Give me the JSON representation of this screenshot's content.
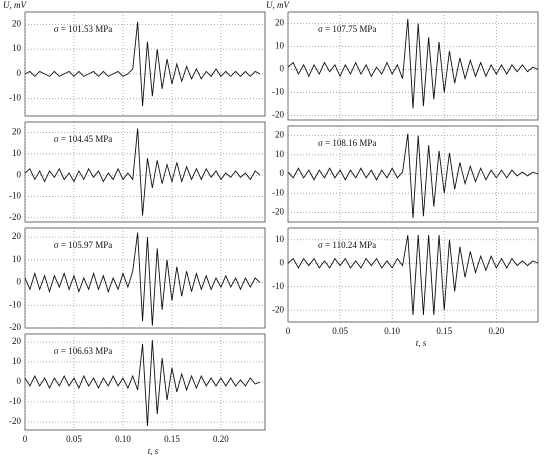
{
  "chart_data": [
    {
      "type": "line",
      "ylabel": "U, mV",
      "annotation": "σ = 101.53 MPa",
      "color": "#111111",
      "grid": true,
      "x": [
        0,
        0.005,
        0.01,
        0.015,
        0.02,
        0.025,
        0.03,
        0.035,
        0.04,
        0.045,
        0.05,
        0.055,
        0.06,
        0.065,
        0.07,
        0.075,
        0.08,
        0.085,
        0.09,
        0.095,
        0.1,
        0.105,
        0.11,
        0.115,
        0.12,
        0.125,
        0.13,
        0.135,
        0.14,
        0.145,
        0.15,
        0.155,
        0.16,
        0.165,
        0.17,
        0.175,
        0.18,
        0.185,
        0.19,
        0.195,
        0.2,
        0.205,
        0.21,
        0.215,
        0.22,
        0.225,
        0.23,
        0.235,
        0.24
      ],
      "values": [
        0,
        1,
        -1,
        1,
        0,
        -1,
        1,
        -1,
        0,
        1,
        -1,
        1,
        -1,
        0,
        1,
        -1,
        1,
        -1,
        0,
        1,
        -1,
        0,
        2,
        21,
        -13,
        13,
        -9,
        10,
        -6,
        6,
        -4,
        4,
        -3,
        3,
        -2,
        2,
        -2,
        1,
        -1,
        2,
        -1,
        1,
        -1,
        1,
        -1,
        1,
        -1,
        1,
        0
      ],
      "xlim": [
        0,
        0.245
      ],
      "ylim": [
        -17,
        25
      ],
      "xticks": [
        0,
        0.05,
        0.1,
        0.15,
        0.2
      ],
      "yticks": [
        -10,
        0,
        10,
        20
      ]
    },
    {
      "type": "line",
      "annotation": "σ = 104.45 MPa",
      "color": "#111111",
      "grid": true,
      "x": [
        0,
        0.005,
        0.01,
        0.015,
        0.02,
        0.025,
        0.03,
        0.035,
        0.04,
        0.045,
        0.05,
        0.055,
        0.06,
        0.065,
        0.07,
        0.075,
        0.08,
        0.085,
        0.09,
        0.095,
        0.1,
        0.105,
        0.11,
        0.115,
        0.12,
        0.125,
        0.13,
        0.135,
        0.14,
        0.145,
        0.15,
        0.155,
        0.16,
        0.165,
        0.17,
        0.175,
        0.18,
        0.185,
        0.19,
        0.195,
        0.2,
        0.205,
        0.21,
        0.215,
        0.22,
        0.225,
        0.23,
        0.235,
        0.24
      ],
      "values": [
        1,
        3,
        -2,
        2,
        -3,
        2,
        -1,
        3,
        -2,
        1,
        -3,
        2,
        -2,
        3,
        -1,
        2,
        -3,
        1,
        -2,
        3,
        -2,
        1,
        -2,
        22,
        -19,
        8,
        -6,
        7,
        -4,
        5,
        -3,
        6,
        -3,
        4,
        -2,
        3,
        -2,
        3,
        -1,
        2,
        -2,
        1,
        -1,
        2,
        -1,
        1,
        -2,
        2,
        0
      ],
      "xlim": [
        0,
        0.245
      ],
      "ylim": [
        -22,
        25
      ],
      "xticks": [
        0,
        0.05,
        0.1,
        0.15,
        0.2
      ],
      "yticks": [
        -20,
        -10,
        0,
        10,
        20
      ]
    },
    {
      "type": "line",
      "annotation": "σ = 105.97 MPa",
      "color": "#111111",
      "grid": true,
      "x": [
        0,
        0.005,
        0.01,
        0.015,
        0.02,
        0.025,
        0.03,
        0.035,
        0.04,
        0.045,
        0.05,
        0.055,
        0.06,
        0.065,
        0.07,
        0.075,
        0.08,
        0.085,
        0.09,
        0.095,
        0.1,
        0.105,
        0.11,
        0.115,
        0.12,
        0.125,
        0.13,
        0.135,
        0.14,
        0.145,
        0.15,
        0.155,
        0.16,
        0.165,
        0.17,
        0.175,
        0.18,
        0.185,
        0.19,
        0.195,
        0.2,
        0.205,
        0.21,
        0.215,
        0.22,
        0.225,
        0.23,
        0.235,
        0.24
      ],
      "values": [
        2,
        -3,
        4,
        -3,
        3,
        -4,
        3,
        -2,
        4,
        -3,
        3,
        -4,
        2,
        -3,
        4,
        -3,
        3,
        -4,
        2,
        -3,
        4,
        -2,
        5,
        22,
        -17,
        20,
        -19,
        15,
        -12,
        10,
        -8,
        7,
        -6,
        5,
        -4,
        4,
        -3,
        3,
        -3,
        2,
        -2,
        3,
        -2,
        2,
        -3,
        2,
        -2,
        2,
        0
      ],
      "xlim": [
        0,
        0.245
      ],
      "ylim": [
        -20,
        24
      ],
      "xticks": [
        0,
        0.05,
        0.1,
        0.15,
        0.2
      ],
      "yticks": [
        -20,
        -10,
        0,
        10,
        20
      ]
    },
    {
      "type": "line",
      "annotation": "σ = 106.63 MPa",
      "xlabel": "t, s",
      "color": "#111111",
      "grid": true,
      "x": [
        0,
        0.005,
        0.01,
        0.015,
        0.02,
        0.025,
        0.03,
        0.035,
        0.04,
        0.045,
        0.05,
        0.055,
        0.06,
        0.065,
        0.07,
        0.075,
        0.08,
        0.085,
        0.09,
        0.095,
        0.1,
        0.105,
        0.11,
        0.115,
        0.12,
        0.125,
        0.13,
        0.135,
        0.14,
        0.145,
        0.15,
        0.155,
        0.16,
        0.165,
        0.17,
        0.175,
        0.18,
        0.185,
        0.19,
        0.195,
        0.2,
        0.205,
        0.21,
        0.215,
        0.22,
        0.225,
        0.23,
        0.235,
        0.24
      ],
      "values": [
        2,
        -2,
        3,
        -2,
        2,
        -3,
        2,
        -2,
        3,
        -2,
        2,
        -3,
        3,
        -2,
        2,
        -3,
        2,
        -2,
        3,
        -2,
        2,
        -3,
        3,
        -4,
        19,
        -22,
        21,
        -16,
        12,
        -9,
        7,
        -5,
        4,
        -4,
        3,
        -3,
        3,
        -2,
        2,
        -2,
        2,
        -2,
        2,
        -2,
        1,
        -2,
        2,
        -1,
        0
      ],
      "xlim": [
        0,
        0.245
      ],
      "ylim": [
        -24,
        24
      ],
      "xticks": [
        0,
        0.05,
        {
          "value": 0.1,
          "label": "0.10"
        },
        0.15,
        {
          "value": 0.2,
          "label": "0.20"
        }
      ],
      "yticks": [
        -20,
        -10,
        0,
        10,
        20
      ]
    },
    {
      "type": "line",
      "ylabel": "U, mV",
      "annotation": "σ = 107.75 MPa",
      "color": "#111111",
      "grid": true,
      "x": [
        0,
        0.005,
        0.01,
        0.015,
        0.02,
        0.025,
        0.03,
        0.035,
        0.04,
        0.045,
        0.05,
        0.055,
        0.06,
        0.065,
        0.07,
        0.075,
        0.08,
        0.085,
        0.09,
        0.095,
        0.1,
        0.105,
        0.11,
        0.115,
        0.12,
        0.125,
        0.13,
        0.135,
        0.14,
        0.145,
        0.15,
        0.155,
        0.16,
        0.165,
        0.17,
        0.175,
        0.18,
        0.185,
        0.19,
        0.195,
        0.2,
        0.205,
        0.21,
        0.215,
        0.22,
        0.225,
        0.23,
        0.235,
        0.24
      ],
      "values": [
        1,
        3,
        -2,
        2,
        -3,
        2,
        -2,
        3,
        -1,
        2,
        -3,
        2,
        -2,
        3,
        -2,
        2,
        -3,
        1,
        -2,
        3,
        -2,
        2,
        -4,
        22,
        -17,
        20,
        -16,
        14,
        -13,
        12,
        -10,
        8,
        -6,
        5,
        -4,
        4,
        -3,
        3,
        -3,
        2,
        -2,
        2,
        -2,
        2,
        -1,
        2,
        -1,
        1,
        0
      ],
      "xlim": [
        0,
        0.24
      ],
      "ylim": [
        -22,
        25
      ],
      "xticks": [
        0,
        0.05,
        0.1,
        0.15,
        0.2
      ],
      "yticks": [
        -20,
        -10,
        0,
        10,
        20
      ]
    },
    {
      "type": "line",
      "annotation": "σ = 108.16 MPa",
      "color": "#111111",
      "grid": true,
      "x": [
        0,
        0.005,
        0.01,
        0.015,
        0.02,
        0.025,
        0.03,
        0.035,
        0.04,
        0.045,
        0.05,
        0.055,
        0.06,
        0.065,
        0.07,
        0.075,
        0.08,
        0.085,
        0.09,
        0.095,
        0.1,
        0.105,
        0.11,
        0.115,
        0.12,
        0.125,
        0.13,
        0.135,
        0.14,
        0.145,
        0.15,
        0.155,
        0.16,
        0.165,
        0.17,
        0.175,
        0.18,
        0.185,
        0.19,
        0.195,
        0.2,
        0.205,
        0.21,
        0.215,
        0.22,
        0.225,
        0.23,
        0.235,
        0.24
      ],
      "values": [
        1,
        -2,
        3,
        -2,
        2,
        -3,
        2,
        -2,
        3,
        -2,
        2,
        -3,
        2,
        -2,
        3,
        -2,
        2,
        -3,
        2,
        -2,
        3,
        -2,
        1,
        21,
        -23,
        20,
        -22,
        15,
        -17,
        12,
        -10,
        11,
        -8,
        6,
        -5,
        4,
        -4,
        3,
        -3,
        2,
        -2,
        2,
        -2,
        2,
        -1,
        1,
        -1,
        1,
        0
      ],
      "xlim": [
        0,
        0.24
      ],
      "ylim": [
        -25,
        25
      ],
      "xticks": [
        0,
        0.05,
        0.1,
        0.15,
        0.2
      ],
      "yticks": [
        -20,
        -10,
        0,
        10,
        20
      ]
    },
    {
      "type": "line",
      "annotation": "σ = 110.24 MPa",
      "xlabel": "t, s",
      "color": "#111111",
      "grid": true,
      "x": [
        0,
        0.005,
        0.01,
        0.015,
        0.02,
        0.025,
        0.03,
        0.035,
        0.04,
        0.045,
        0.05,
        0.055,
        0.06,
        0.065,
        0.07,
        0.075,
        0.08,
        0.085,
        0.09,
        0.095,
        0.1,
        0.105,
        0.11,
        0.115,
        0.12,
        0.125,
        0.13,
        0.135,
        0.14,
        0.145,
        0.15,
        0.155,
        0.16,
        0.165,
        0.17,
        0.175,
        0.18,
        0.185,
        0.19,
        0.195,
        0.2,
        0.205,
        0.21,
        0.215,
        0.22,
        0.225,
        0.23,
        0.235,
        0.24
      ],
      "values": [
        0,
        2,
        -2,
        2,
        -1,
        2,
        -2,
        1,
        -2,
        2,
        -1,
        2,
        -2,
        1,
        -2,
        2,
        -1,
        2,
        -2,
        1,
        -2,
        2,
        -1,
        12,
        -22,
        12,
        -22,
        12,
        -22,
        12,
        -20,
        10,
        -12,
        7,
        -6,
        5,
        -4,
        3,
        -3,
        3,
        -2,
        2,
        -2,
        2,
        -1,
        1,
        -1,
        1,
        0
      ],
      "xlim": [
        0,
        0.24
      ],
      "ylim": [
        -25,
        15
      ],
      "xticks": [
        0,
        0.05,
        {
          "value": 0.1,
          "label": "0.10"
        },
        0.15,
        {
          "value": 0.2,
          "label": "0.20"
        }
      ],
      "yticks": [
        -20,
        -10,
        0,
        10
      ]
    }
  ]
}
